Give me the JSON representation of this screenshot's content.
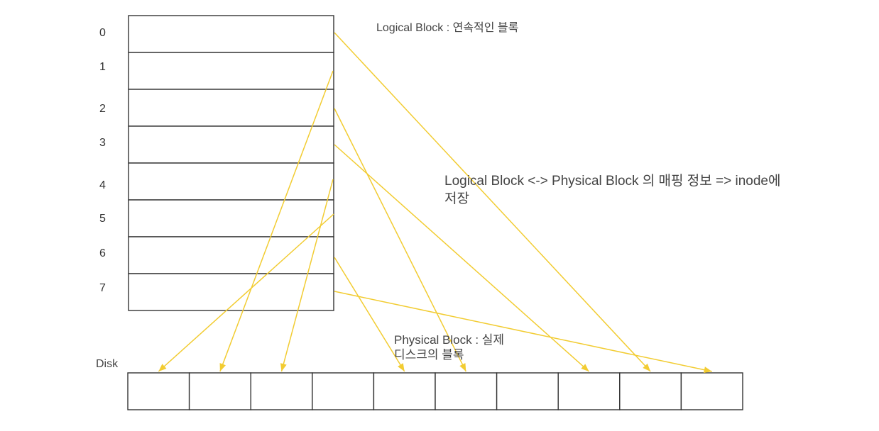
{
  "logical_blocks": {
    "indices": [
      "0",
      "1",
      "2",
      "3",
      "4",
      "5",
      "6",
      "7"
    ]
  },
  "labels": {
    "logical": "Logical Block : 연속적인 블록",
    "mapping_line1": "Logical Block <-> Physical Block 의 매핑 정보 => inode에",
    "mapping_line2": "저장",
    "physical_line1": "Physical Block : 실제",
    "physical_line2": "디스크의 블록",
    "disk": "Disk"
  },
  "disk": {
    "cell_count": 10
  },
  "mapping": [
    {
      "logical": 0,
      "disk_cell": 8
    },
    {
      "logical": 1,
      "disk_cell": 1
    },
    {
      "logical": 2,
      "disk_cell": 5
    },
    {
      "logical": 3,
      "disk_cell": 7
    },
    {
      "logical": 4,
      "disk_cell": 2
    },
    {
      "logical": 5,
      "disk_cell": 0
    },
    {
      "logical": 6,
      "disk_cell": 4
    },
    {
      "logical": 7,
      "disk_cell": 9
    }
  ],
  "colors": {
    "arrow": "#f2cc32",
    "stroke": "#333333"
  }
}
